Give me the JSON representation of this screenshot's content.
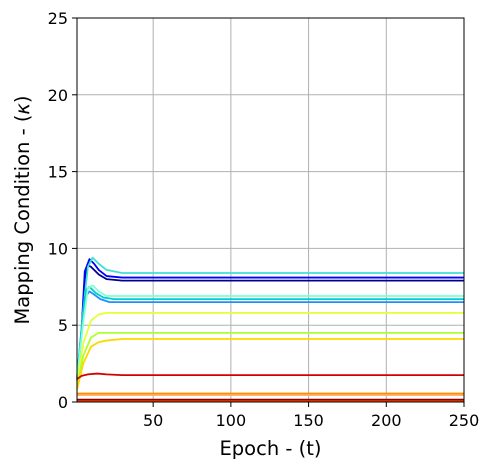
{
  "chart_data": {
    "type": "line",
    "title": "",
    "xlabel": "Epoch - (t)",
    "ylabel_prefix": "Mapping Condition - (",
    "ylabel_symbol": "κ",
    "ylabel_suffix": ")",
    "xlim": [
      1,
      250
    ],
    "ylim": [
      0,
      25
    ],
    "xticks": [
      50,
      100,
      150,
      200,
      250
    ],
    "yticks": [
      0,
      5,
      10,
      15,
      20,
      25
    ],
    "grid": true,
    "legend": "none",
    "series": [
      {
        "color": "#00008b",
        "points": [
          [
            1,
            1.5
          ],
          [
            4,
            4.5
          ],
          [
            6,
            8.0
          ],
          [
            8,
            8.9
          ],
          [
            10,
            8.8
          ],
          [
            12,
            8.6
          ],
          [
            15,
            8.3
          ],
          [
            20,
            8.0
          ],
          [
            30,
            7.9
          ],
          [
            250,
            7.9
          ]
        ]
      },
      {
        "color": "#0000ff",
        "points": [
          [
            1,
            1.5
          ],
          [
            4,
            4.8
          ],
          [
            6,
            8.5
          ],
          [
            9,
            9.3
          ],
          [
            12,
            9.0
          ],
          [
            15,
            8.6
          ],
          [
            20,
            8.2
          ],
          [
            30,
            8.1
          ],
          [
            250,
            8.1
          ]
        ]
      },
      {
        "color": "#40e0d0",
        "points": [
          [
            1,
            1.6
          ],
          [
            5,
            6.0
          ],
          [
            8,
            8.8
          ],
          [
            11,
            9.4
          ],
          [
            15,
            9.0
          ],
          [
            20,
            8.6
          ],
          [
            30,
            8.4
          ],
          [
            250,
            8.4
          ]
        ]
      },
      {
        "color": "#1e90ff",
        "points": [
          [
            1,
            1.4
          ],
          [
            4,
            4.5
          ],
          [
            6,
            6.8
          ],
          [
            9,
            7.2
          ],
          [
            12,
            7.0
          ],
          [
            16,
            6.7
          ],
          [
            22,
            6.5
          ],
          [
            250,
            6.5
          ]
        ]
      },
      {
        "color": "#00ced1",
        "points": [
          [
            1,
            1.5
          ],
          [
            4,
            4.8
          ],
          [
            7,
            7.3
          ],
          [
            9,
            7.5
          ],
          [
            13,
            7.1
          ],
          [
            18,
            6.8
          ],
          [
            25,
            6.7
          ],
          [
            250,
            6.7
          ]
        ]
      },
      {
        "color": "#7fffd4",
        "points": [
          [
            1,
            1.5
          ],
          [
            5,
            5.2
          ],
          [
            8,
            7.4
          ],
          [
            11,
            7.6
          ],
          [
            15,
            7.2
          ],
          [
            20,
            6.9
          ],
          [
            30,
            6.9
          ],
          [
            250,
            6.9
          ]
        ]
      },
      {
        "color": "#e6ff33",
        "points": [
          [
            1,
            1.2
          ],
          [
            5,
            3.8
          ],
          [
            10,
            5.3
          ],
          [
            15,
            5.7
          ],
          [
            20,
            5.8
          ],
          [
            250,
            5.8
          ]
        ]
      },
      {
        "color": "#adff2f",
        "points": [
          [
            1,
            1.0
          ],
          [
            5,
            3.0
          ],
          [
            10,
            4.2
          ],
          [
            15,
            4.5
          ],
          [
            25,
            4.5
          ],
          [
            250,
            4.5
          ]
        ]
      },
      {
        "color": "#ffd700",
        "points": [
          [
            1,
            0.8
          ],
          [
            5,
            2.5
          ],
          [
            10,
            3.6
          ],
          [
            15,
            3.9
          ],
          [
            20,
            4.0
          ],
          [
            30,
            4.1
          ],
          [
            250,
            4.1
          ]
        ]
      },
      {
        "color": "#d40000",
        "points": [
          [
            1,
            1.5
          ],
          [
            4,
            1.7
          ],
          [
            8,
            1.8
          ],
          [
            14,
            1.85
          ],
          [
            20,
            1.8
          ],
          [
            30,
            1.75
          ],
          [
            250,
            1.75
          ]
        ]
      },
      {
        "color": "#ff8c00",
        "points": [
          [
            1,
            0.55
          ],
          [
            250,
            0.55
          ]
        ]
      },
      {
        "color": "#ffb366",
        "points": [
          [
            1,
            0.45
          ],
          [
            250,
            0.45
          ]
        ]
      },
      {
        "color": "#8b0000",
        "points": [
          [
            1,
            0.15
          ],
          [
            250,
            0.15
          ]
        ]
      },
      {
        "color": "#ff4500",
        "points": [
          [
            1,
            0.05
          ],
          [
            250,
            0.05
          ]
        ]
      }
    ]
  }
}
